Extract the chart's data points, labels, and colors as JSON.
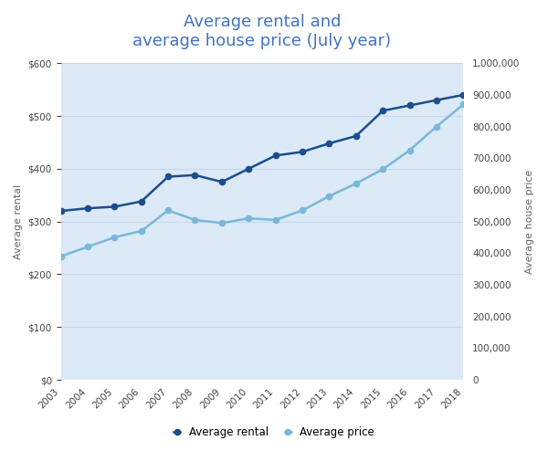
{
  "years": [
    2003,
    2004,
    2005,
    2006,
    2007,
    2008,
    2009,
    2010,
    2011,
    2012,
    2013,
    2014,
    2015,
    2016,
    2017,
    2018
  ],
  "avg_rental": [
    320,
    325,
    328,
    338,
    385,
    388,
    375,
    400,
    425,
    432,
    448,
    462,
    510,
    520,
    530,
    540
  ],
  "avg_price": [
    390000,
    420000,
    450000,
    470000,
    535000,
    505000,
    495000,
    510000,
    505000,
    535000,
    580000,
    620000,
    665000,
    725000,
    800000,
    870000
  ],
  "title_line1": "Average rental and",
  "title_line2": "average house price (July year)",
  "ylabel_left": "Average rental",
  "ylabel_right": "Average house price",
  "left_color": "#1b4e8c",
  "right_color": "#7ab8d8",
  "bg_color": "#dce9f7",
  "fig_bg": "#ffffff",
  "ylim_left": [
    0,
    600
  ],
  "ylim_right": [
    0,
    1000000
  ],
  "yticks_left": [
    0,
    100,
    200,
    300,
    400,
    500,
    600
  ],
  "ytick_labels_left": [
    "$0",
    "$100",
    "$200",
    "$300",
    "$400",
    "$500",
    "$600"
  ],
  "yticks_right": [
    0,
    100000,
    200000,
    300000,
    400000,
    500000,
    600000,
    700000,
    800000,
    900000,
    1000000
  ],
  "ytick_labels_right": [
    "0",
    "100,000",
    "200,000",
    "300,000",
    "400,000",
    "500,000",
    "600,000",
    "700,000",
    "800,000",
    "900,000",
    "1,000,000"
  ],
  "legend_label_left": "Average rental",
  "legend_label_right": "Average price",
  "title_color": "#4472c4",
  "axis_label_color": "#666666",
  "tick_label_color": "#444444",
  "grid_color": "#c8d9ef"
}
